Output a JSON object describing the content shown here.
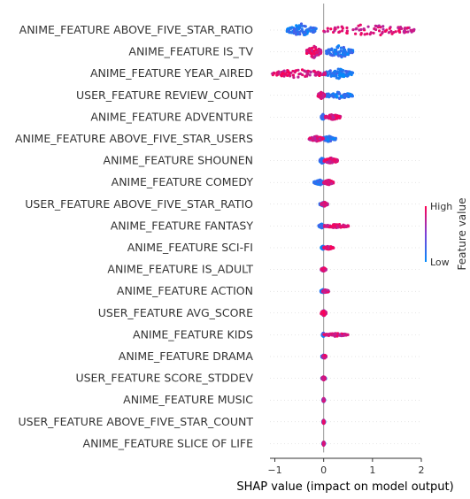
{
  "chart_data": {
    "type": "scatter",
    "subtype": "shap-beeswarm",
    "xlabel": "SHAP value (impact on model output)",
    "xlim": [
      -1.1,
      2.0
    ],
    "xticks": [
      -1,
      0,
      1,
      2
    ],
    "colorbar": {
      "title": "Feature value",
      "high": "High",
      "low": "Low",
      "low_color": "#008bfb",
      "high_color": "#ff0052"
    },
    "grid": false,
    "features": [
      {
        "name": "ANIME_FEATURE ABOVE_FIVE_STAR_RATIO",
        "low_range": [
          -0.75,
          -0.15
        ],
        "high_range": [
          0.0,
          1.9
        ],
        "low_side": "left",
        "spread": 0.45
      },
      {
        "name": "ANIME_FEATURE IS_TV",
        "low_range": [
          0.05,
          0.6
        ],
        "high_range": [
          -0.35,
          -0.05
        ],
        "low_side": "right",
        "spread": 0.45
      },
      {
        "name": "ANIME_FEATURE YEAR_AIRED",
        "low_range": [
          0.0,
          0.6
        ],
        "high_range": [
          -1.05,
          0.05
        ],
        "low_side": "right",
        "spread": 0.35
      },
      {
        "name": "USER_FEATURE REVIEW_COUNT",
        "low_range": [
          0.0,
          0.6
        ],
        "high_range": [
          -0.12,
          0.02
        ],
        "low_side": "right",
        "spread": 0.25
      },
      {
        "name": "ANIME_FEATURE ADVENTURE",
        "low_range": [
          -0.05,
          0.02
        ],
        "high_range": [
          0.02,
          0.35
        ],
        "low_side": "left",
        "spread": 0.2
      },
      {
        "name": "ANIME_FEATURE ABOVE_FIVE_STAR_USERS",
        "low_range": [
          -0.05,
          0.25
        ],
        "high_range": [
          -0.3,
          0.0
        ],
        "low_side": "right",
        "spread": 0.2
      },
      {
        "name": "ANIME_FEATURE SHOUNEN",
        "low_range": [
          -0.08,
          0.02
        ],
        "high_range": [
          0.0,
          0.3
        ],
        "low_side": "left",
        "spread": 0.2
      },
      {
        "name": "ANIME_FEATURE COMEDY",
        "low_range": [
          -0.2,
          0.05
        ],
        "high_range": [
          0.0,
          0.2
        ],
        "low_side": "left",
        "spread": 0.18
      },
      {
        "name": "USER_FEATURE ABOVE_FIVE_STAR_RATIO",
        "low_range": [
          -0.08,
          0.08
        ],
        "high_range": [
          -0.05,
          0.08
        ],
        "low_side": "left",
        "spread": 0.15
      },
      {
        "name": "ANIME_FEATURE FANTASY",
        "low_range": [
          -0.1,
          0.02
        ],
        "high_range": [
          0.0,
          0.52
        ],
        "low_side": "left",
        "spread": 0.15
      },
      {
        "name": "ANIME_FEATURE SCI-FI",
        "low_range": [
          -0.05,
          0.02
        ],
        "high_range": [
          0.0,
          0.2
        ],
        "low_side": "left",
        "spread": 0.12
      },
      {
        "name": "ANIME_FEATURE IS_ADULT",
        "low_range": [
          -0.05,
          0.03
        ],
        "high_range": [
          -0.05,
          0.05
        ],
        "low_side": "left",
        "spread": 0.12
      },
      {
        "name": "ANIME_FEATURE ACTION",
        "low_range": [
          -0.06,
          0.03
        ],
        "high_range": [
          -0.02,
          0.1
        ],
        "low_side": "left",
        "spread": 0.12
      },
      {
        "name": "USER_FEATURE AVG_SCORE",
        "low_range": [
          -0.04,
          0.04
        ],
        "high_range": [
          -0.05,
          0.05
        ],
        "low_side": "left",
        "spread": 0.2
      },
      {
        "name": "ANIME_FEATURE KIDS",
        "low_range": [
          -0.03,
          0.02
        ],
        "high_range": [
          0.0,
          0.5
        ],
        "low_side": "left",
        "spread": 0.12
      },
      {
        "name": "ANIME_FEATURE DRAMA",
        "low_range": [
          -0.04,
          0.04
        ],
        "high_range": [
          -0.02,
          0.05
        ],
        "low_side": "left",
        "spread": 0.1
      },
      {
        "name": "USER_FEATURE SCORE_STDDEV",
        "low_range": [
          -0.04,
          0.04
        ],
        "high_range": [
          -0.03,
          0.03
        ],
        "low_side": "left",
        "spread": 0.1
      },
      {
        "name": "ANIME_FEATURE MUSIC",
        "low_range": [
          -0.02,
          0.02
        ],
        "high_range": [
          -0.01,
          0.01
        ],
        "low_side": "left",
        "spread": 0.08
      },
      {
        "name": "USER_FEATURE ABOVE_FIVE_STAR_COUNT",
        "low_range": [
          -0.02,
          0.02
        ],
        "high_range": [
          -0.01,
          0.01
        ],
        "low_side": "left",
        "spread": 0.08
      },
      {
        "name": "ANIME_FEATURE SLICE OF LIFE",
        "low_range": [
          -0.02,
          0.02
        ],
        "high_range": [
          -0.01,
          0.01
        ],
        "low_side": "left",
        "spread": 0.06
      }
    ]
  }
}
